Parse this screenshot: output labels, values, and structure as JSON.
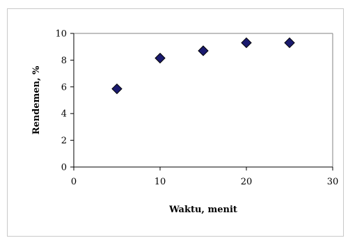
{
  "chart_data": {
    "type": "scatter",
    "title": "",
    "xlabel": "Waktu, menit",
    "ylabel": "Rendemen, %",
    "xlim": [
      0,
      30
    ],
    "ylim": [
      0,
      10
    ],
    "xticks": [
      0,
      10,
      20,
      30
    ],
    "yticks": [
      0,
      2,
      4,
      6,
      8,
      10
    ],
    "grid": false,
    "legend": "none",
    "marker": "diamond",
    "marker_color": "#1a1a6e",
    "series": [
      {
        "x": [
          5,
          10,
          15,
          20,
          25
        ],
        "y": [
          5.85,
          8.15,
          8.7,
          9.3,
          9.3
        ]
      }
    ]
  }
}
